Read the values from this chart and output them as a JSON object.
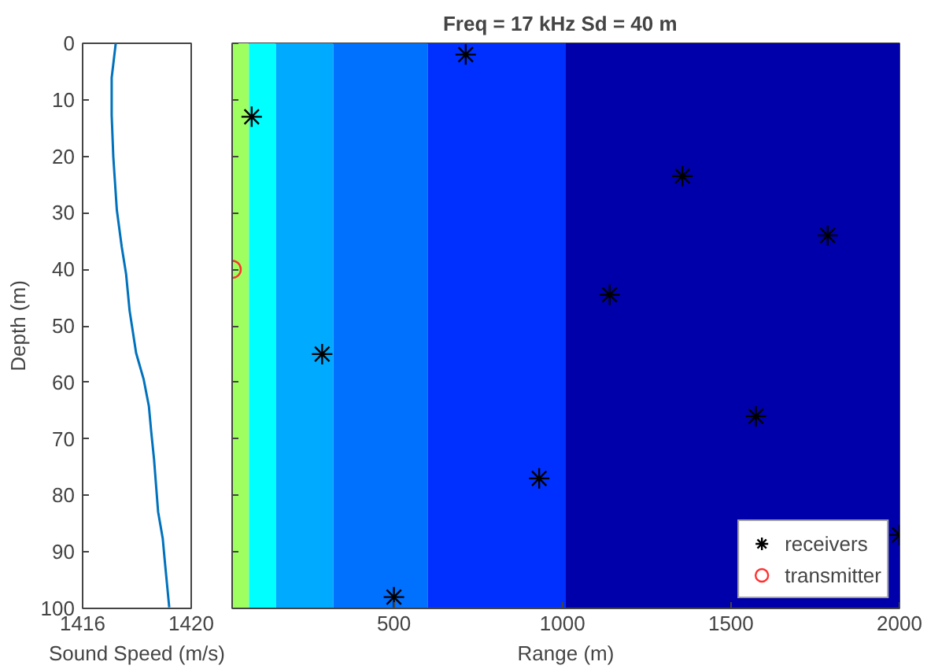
{
  "chart_data": [
    {
      "type": "line",
      "xlabel": "Sound Speed (m/s)",
      "ylabel": "Depth (m)",
      "xlim": [
        1416,
        1420
      ],
      "xticks": [
        1416,
        1420
      ],
      "ylim": [
        100,
        0
      ],
      "yticks": [
        0,
        10,
        20,
        30,
        40,
        50,
        60,
        70,
        80,
        90,
        100
      ],
      "grid": false,
      "legend": false,
      "series": [
        {
          "color": "#0072bd",
          "x": [
            1417.22,
            1417.07,
            1417.07,
            1417.13,
            1417.26,
            1417.44,
            1417.6,
            1417.73,
            1417.82,
            1417.97,
            1418.25,
            1418.44,
            1418.53,
            1418.63,
            1418.78,
            1418.95,
            1419.04,
            1419.19
          ],
          "values": [
            0,
            6.1,
            12.7,
            20.1,
            29.5,
            36,
            40.8,
            47.3,
            50.1,
            54.8,
            59.5,
            64.2,
            68.9,
            73.6,
            82.9,
            87.6,
            92.3,
            99.8
          ]
        }
      ]
    },
    {
      "type": "scatter",
      "title": "Freq = 17 kHz   Sd = 40 m",
      "xlabel": "Range (m)",
      "xlim": [
        20,
        2000
      ],
      "xticks": [
        500,
        1000,
        1500,
        2000
      ],
      "ylim": [
        100,
        0
      ],
      "yticks": [
        0,
        10,
        20,
        30,
        40,
        50,
        60,
        70,
        80,
        90,
        100
      ],
      "tick_labels": "x",
      "grid": false,
      "legend": "bottom right",
      "bands": [
        {
          "axis": "x",
          "from": 20,
          "to": 70,
          "color": "#9fff60"
        },
        {
          "axis": "x",
          "from": 70,
          "to": 150,
          "color": "#00ffff"
        },
        {
          "axis": "x",
          "from": 150,
          "to": 320,
          "color": "#00aaff"
        },
        {
          "axis": "x",
          "from": 320,
          "to": 600,
          "color": "#0070ff"
        },
        {
          "axis": "x",
          "from": 600,
          "to": 1010,
          "color": "#0030ff"
        },
        {
          "axis": "x",
          "from": 1010,
          "to": 2000,
          "color": "#0000aa"
        }
      ],
      "series": [
        {
          "name": "receivers",
          "color": "#000000",
          "marker": "cross",
          "x": [
            78,
            713,
            287,
            500,
            931,
            1140,
            1356,
            1787,
            1574,
            2000
          ],
          "values": [
            13,
            2,
            55,
            98,
            77,
            44.5,
            23.5,
            34,
            66,
            87
          ]
        },
        {
          "name": "transmitter",
          "color": "#ff3030",
          "marker": "circle",
          "x": [
            20
          ],
          "values": [
            40
          ]
        }
      ]
    }
  ]
}
